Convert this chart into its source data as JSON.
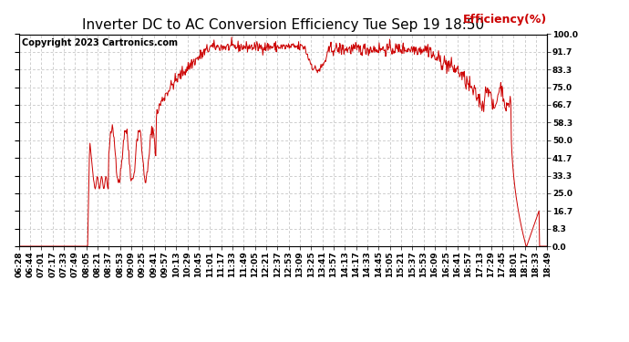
{
  "title": "Inverter DC to AC Conversion Efficiency Tue Sep 19 18:50",
  "copyright": "Copyright 2023 Cartronics.com",
  "legend_label": "Efficiency(%)",
  "line_color": "#cc0000",
  "background_color": "#ffffff",
  "grid_color": "#bbbbbb",
  "ylim": [
    0.0,
    100.0
  ],
  "ytick_values": [
    0.0,
    8.3,
    16.7,
    25.0,
    33.3,
    41.7,
    50.0,
    58.3,
    66.7,
    75.0,
    83.3,
    91.7,
    100.0
  ],
  "ytick_labels": [
    "0.0",
    "8.3",
    "16.7",
    "25.0",
    "33.3",
    "41.7",
    "50.0",
    "58.3",
    "66.7",
    "75.0",
    "83.3",
    "91.7",
    "100.0"
  ],
  "title_fontsize": 11,
  "tick_fontsize": 6.5,
  "copyright_fontsize": 7,
  "legend_fontsize": 9,
  "xtick_labels": [
    "06:28",
    "06:44",
    "07:01",
    "07:17",
    "07:33",
    "07:49",
    "08:05",
    "08:21",
    "08:37",
    "08:53",
    "09:09",
    "09:25",
    "09:41",
    "09:57",
    "10:13",
    "10:29",
    "10:45",
    "11:01",
    "11:17",
    "11:33",
    "11:49",
    "12:05",
    "12:21",
    "12:37",
    "12:53",
    "13:09",
    "13:25",
    "13:41",
    "13:57",
    "14:13",
    "14:17",
    "14:33",
    "14:45",
    "15:05",
    "15:21",
    "15:37",
    "15:53",
    "16:09",
    "16:25",
    "16:41",
    "16:57",
    "17:13",
    "17:29",
    "17:45",
    "18:01",
    "18:17",
    "18:33",
    "18:49"
  ]
}
